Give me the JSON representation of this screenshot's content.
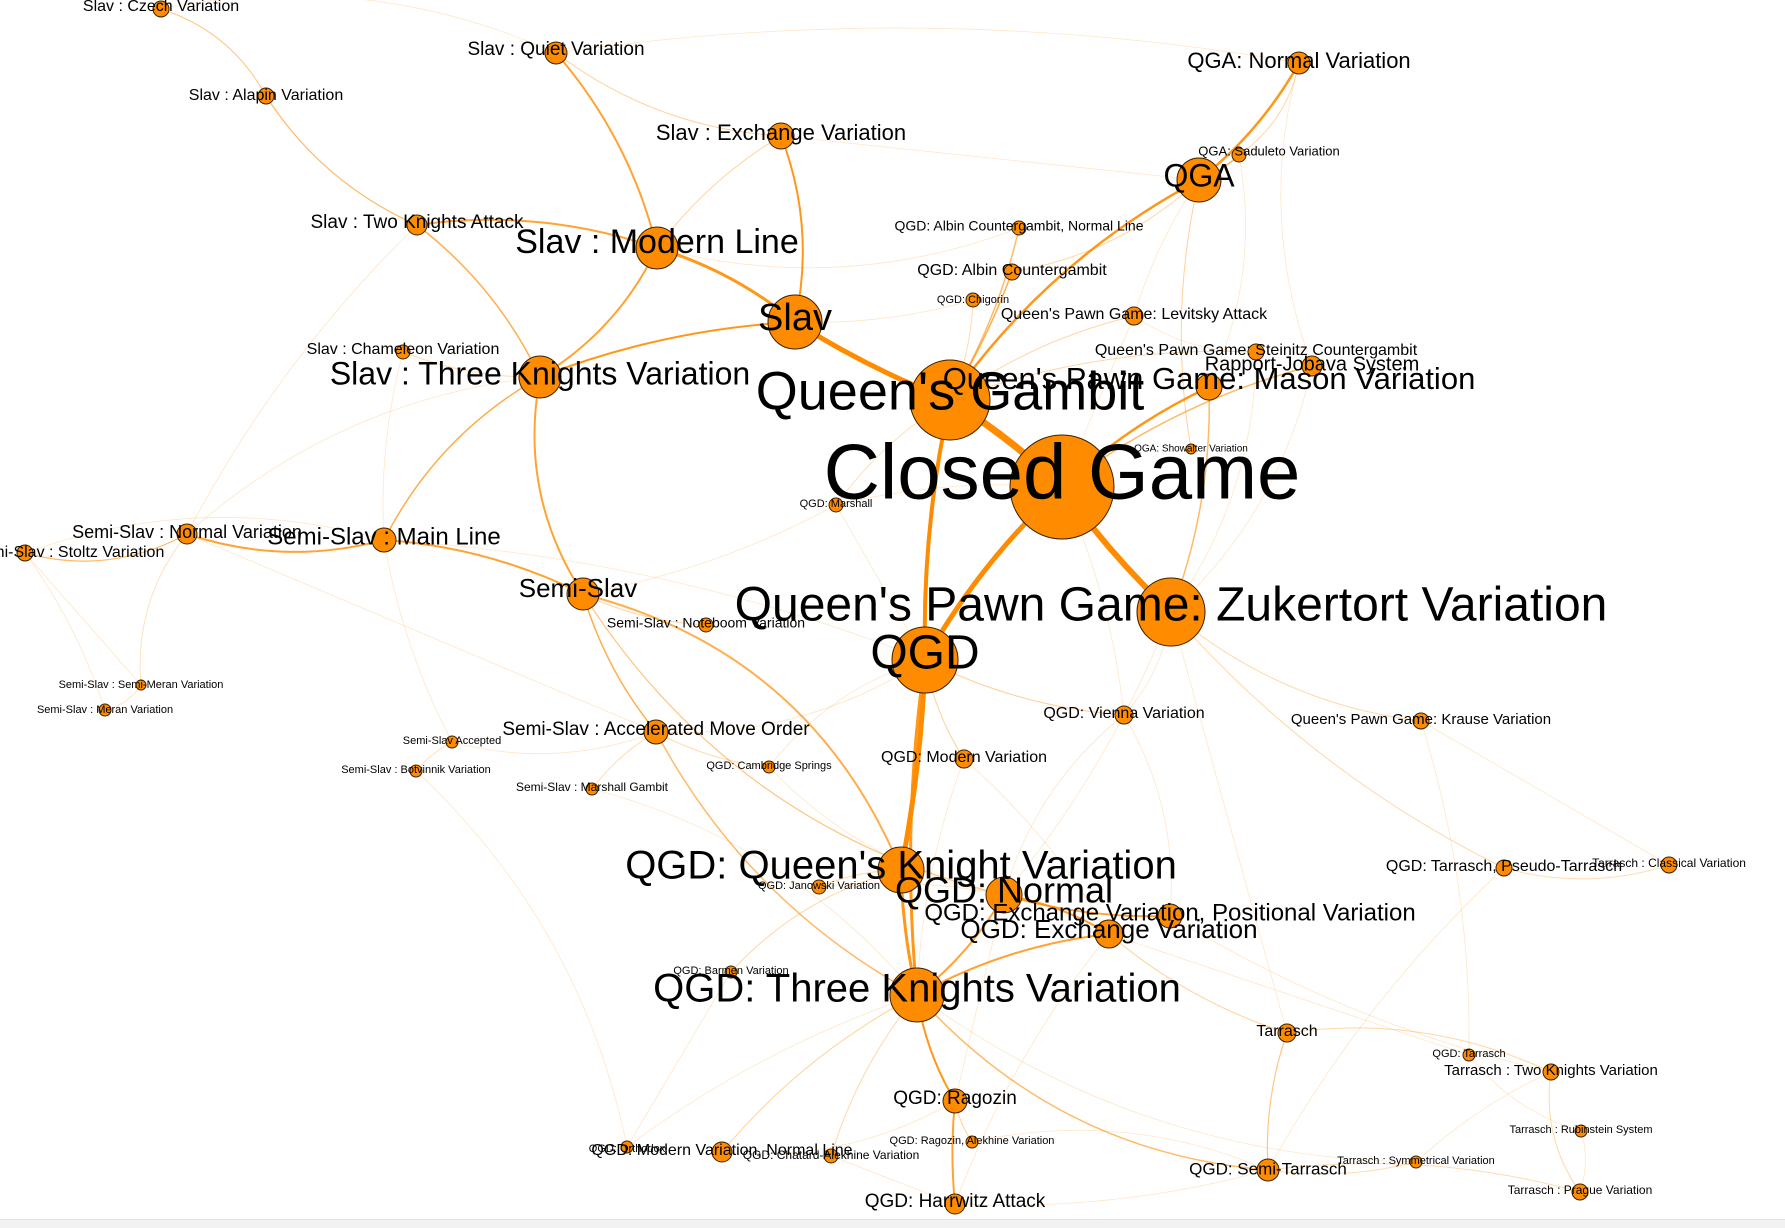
{
  "diagram": {
    "type": "network-graph",
    "node_color": "#ff8c00",
    "edge_color": "#ff8c00",
    "background": "#ffffff",
    "nodes": [
      {
        "id": "closed-game",
        "label": "Closed Game"
      },
      {
        "id": "queens-gambit",
        "label": "Queen's Gambit"
      },
      {
        "id": "zukertort",
        "label": "Queen's Pawn Game: Zukertort Variation"
      },
      {
        "id": "qgd",
        "label": "QGD"
      },
      {
        "id": "slav",
        "label": "Slav"
      },
      {
        "id": "qga",
        "label": "QGA"
      },
      {
        "id": "qga-normal",
        "label": "QGA: Normal Variation"
      },
      {
        "id": "qga-saduleto",
        "label": "QGA: Saduleto Variation"
      },
      {
        "id": "qga-showalter",
        "label": "QGA: Showalter Variation"
      },
      {
        "id": "slav-czech",
        "label": "Slav : Czech Variation"
      },
      {
        "id": "slav-quiet",
        "label": "Slav : Quiet Variation"
      },
      {
        "id": "slav-alapin",
        "label": "Slav : Alapin Variation"
      },
      {
        "id": "slav-exchange",
        "label": "Slav : Exchange Variation"
      },
      {
        "id": "slav-two-knights",
        "label": "Slav : Two Knights Attack"
      },
      {
        "id": "slav-modern",
        "label": "Slav : Modern Line"
      },
      {
        "id": "slav-chameleon",
        "label": "Slav : Chameleon Variation"
      },
      {
        "id": "slav-three-knights",
        "label": "Slav : Three Knights Variation"
      },
      {
        "id": "qgd-albin-normal",
        "label": "QGD: Albin Countergambit, Normal Line"
      },
      {
        "id": "qgd-albin",
        "label": "QGD: Albin Countergambit"
      },
      {
        "id": "qgd-chigorin",
        "label": "QGD: Chigorin"
      },
      {
        "id": "qpg-levitsky",
        "label": "Queen's Pawn Game: Levitsky Attack"
      },
      {
        "id": "qpg-steinitz",
        "label": "Queen's Pawn Game: Steinitz Countergambit"
      },
      {
        "id": "rapport-jobava",
        "label": "Rapport-Jobava System"
      },
      {
        "id": "qpg-mason",
        "label": "Queen's Pawn Game: Mason Variation"
      },
      {
        "id": "qgd-marshall",
        "label": "QGD: Marshall"
      },
      {
        "id": "semi-slav-normal",
        "label": "Semi-Slav : Normal Variation"
      },
      {
        "id": "semi-slav-main",
        "label": "Semi-Slav : Main Line"
      },
      {
        "id": "semi-slav-stoltz",
        "label": "Semi-Slav : Stoltz Variation"
      },
      {
        "id": "semi-slav",
        "label": "Semi-Slav"
      },
      {
        "id": "semi-slav-noteboom",
        "label": "Semi-Slav : Noteboom Variation"
      },
      {
        "id": "semi-slav-semi-meran",
        "label": "Semi-Slav : Semi-Meran Variation"
      },
      {
        "id": "semi-slav-meran",
        "label": "Semi-Slav : Meran Variation"
      },
      {
        "id": "semi-slav-accepted",
        "label": "Semi-Slav Accepted"
      },
      {
        "id": "semi-slav-accelerated",
        "label": "Semi-Slav : Accelerated Move Order"
      },
      {
        "id": "semi-slav-botvinnik",
        "label": "Semi-Slav : Botvinnik Variation"
      },
      {
        "id": "qgd-cambridge",
        "label": "QGD: Cambridge Springs"
      },
      {
        "id": "semi-slav-marshall",
        "label": "Semi-Slav : Marshall Gambit"
      },
      {
        "id": "qgd-vienna",
        "label": "QGD: Vienna Variation"
      },
      {
        "id": "qgd-modern",
        "label": "QGD: Modern Variation"
      },
      {
        "id": "qpg-krause",
        "label": "Queen's Pawn Game: Krause Variation"
      },
      {
        "id": "qgd-queens-knight",
        "label": "QGD: Queen's Knight Variation"
      },
      {
        "id": "qgd-janowski",
        "label": "QGD: Janowski Variation"
      },
      {
        "id": "qgd-normal",
        "label": "QGD: Normal"
      },
      {
        "id": "qgd-exchange-positional",
        "label": "QGD: Exchange Variation, Positional Variation"
      },
      {
        "id": "qgd-exchange",
        "label": "QGD: Exchange Variation"
      },
      {
        "id": "qgd-tarrasch-pseudo",
        "label": "QGD: Tarrasch, Pseudo-Tarrasch"
      },
      {
        "id": "tarrasch-classical",
        "label": "Tarrasch : Classical Variation"
      },
      {
        "id": "qgd-barmen",
        "label": "QGD: Barmen Variation"
      },
      {
        "id": "qgd-three-knights",
        "label": "QGD: Three Knights Variation"
      },
      {
        "id": "tarrasch",
        "label": "Tarrasch"
      },
      {
        "id": "qgd-tarrasch",
        "label": "QGD: Tarrasch"
      },
      {
        "id": "tarrasch-two-knights",
        "label": "Tarrasch : Two Knights Variation"
      },
      {
        "id": "qgd-ragozin",
        "label": "QGD: Ragozin"
      },
      {
        "id": "qgd-orthodox",
        "label": "QGD: Orthodox"
      },
      {
        "id": "qgd-modern-normal",
        "label": "QGD: Modern Variation, Normal Line"
      },
      {
        "id": "qgd-chatard",
        "label": "QGD: Chatard-Alekhine Variation"
      },
      {
        "id": "qgd-ragozin-alekhine",
        "label": "QGD: Ragozin, Alekhine Variation"
      },
      {
        "id": "tarrasch-rubinstein",
        "label": "Tarrasch : Rubinstein System"
      },
      {
        "id": "tarrasch-symmetrical",
        "label": "Tarrasch : Symmetrical Variation"
      },
      {
        "id": "qgd-semi-tarrasch",
        "label": "QGD: Semi-Tarrasch"
      },
      {
        "id": "tarrasch-prague",
        "label": "Tarrasch : Prague Variation"
      },
      {
        "id": "qgd-harrwitz",
        "label": "QGD: Harrwitz Attack"
      }
    ]
  }
}
